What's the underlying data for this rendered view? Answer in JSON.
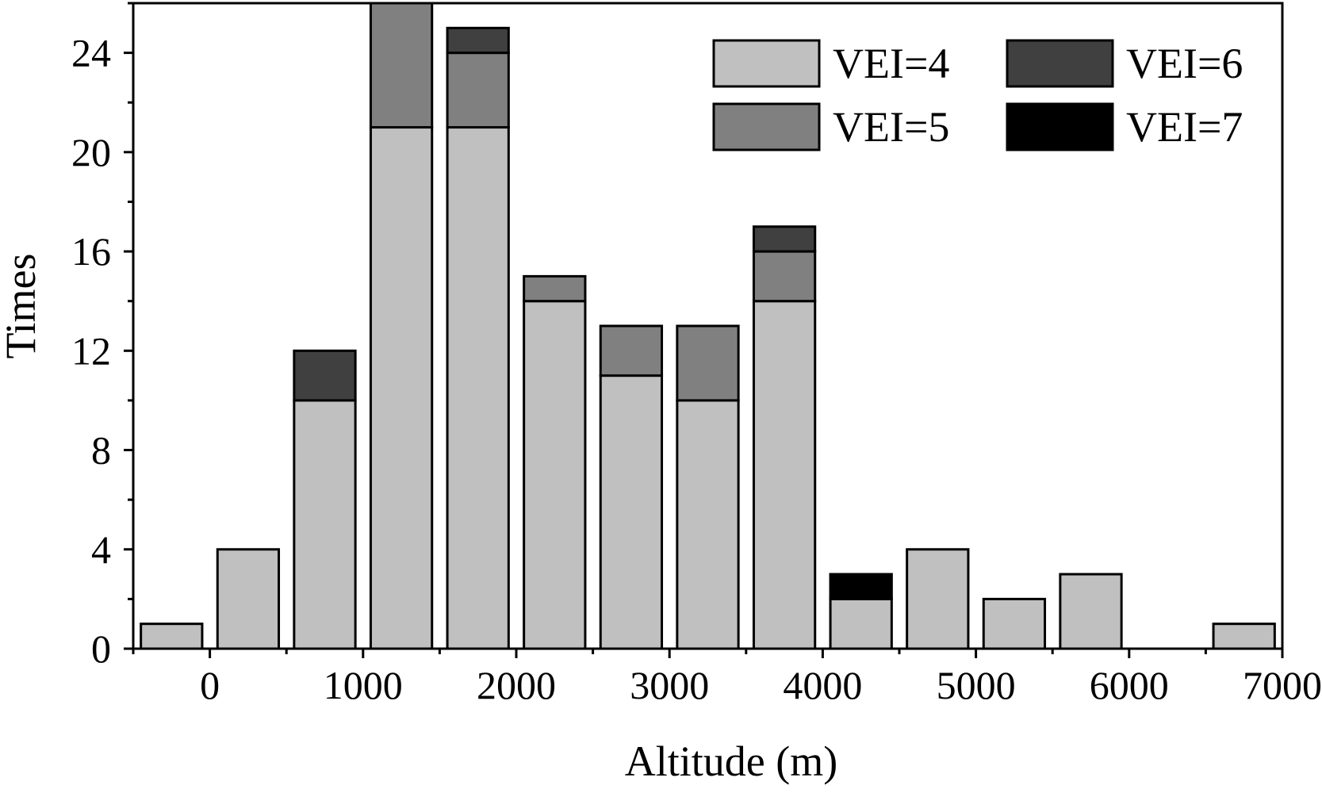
{
  "chart_data": {
    "type": "bar",
    "stacked": true,
    "title": "",
    "xlabel": "Altitude (m)",
    "ylabel": "Times",
    "xlim": [
      -500,
      7000
    ],
    "ylim": [
      0,
      26
    ],
    "xticks": [
      0,
      1000,
      2000,
      3000,
      4000,
      5000,
      6000,
      7000
    ],
    "yticks": [
      0,
      4,
      8,
      12,
      16,
      20,
      24
    ],
    "bin_width": 500,
    "bin_centers": [
      -250,
      250,
      750,
      1250,
      1750,
      2250,
      2750,
      3250,
      3750,
      4250,
      4750,
      5250,
      5750,
      6250,
      6750
    ],
    "series": [
      {
        "name": "VEI=4",
        "color": "#c0c0c0",
        "values": [
          1,
          4,
          10,
          21,
          21,
          14,
          11,
          10,
          14,
          2,
          4,
          2,
          3,
          0,
          1
        ]
      },
      {
        "name": "VEI=5",
        "color": "#808080",
        "values": [
          0,
          0,
          0,
          5,
          3,
          1,
          2,
          3,
          2,
          0,
          0,
          0,
          0,
          0,
          0
        ]
      },
      {
        "name": "VEI=6",
        "color": "#404040",
        "values": [
          0,
          0,
          2,
          0,
          1,
          0,
          0,
          0,
          1,
          0,
          0,
          0,
          0,
          0,
          0
        ]
      },
      {
        "name": "VEI=7",
        "color": "#000000",
        "values": [
          0,
          0,
          0,
          0,
          0,
          0,
          0,
          0,
          0,
          1,
          0,
          0,
          0,
          0,
          0
        ]
      }
    ],
    "legend_position": "top-right",
    "grid": false
  }
}
